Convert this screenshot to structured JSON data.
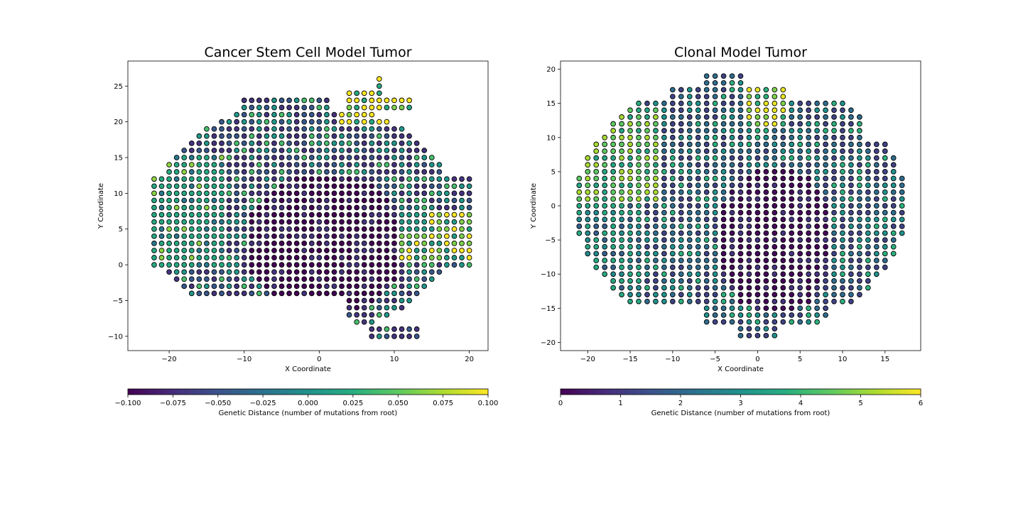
{
  "figure": {
    "background": "#ffffff"
  },
  "chart_data": [
    {
      "type": "scatter",
      "title": "Cancer Stem Cell Model Tumor",
      "xlabel": "X Coordinate",
      "ylabel": "Y Coordinate",
      "xlim": [
        -25.5,
        22.5
      ],
      "ylim": [
        -12,
        28.5
      ],
      "xticks": [
        -20,
        -10,
        0,
        10,
        20
      ],
      "xtick_labels": [
        "−20",
        "−10",
        "0",
        "10",
        "20"
      ],
      "yticks": [
        -10,
        -5,
        0,
        5,
        10,
        15,
        20,
        25
      ],
      "ytick_labels": [
        "−10",
        "−5",
        "0",
        "5",
        "10",
        "15",
        "20",
        "25"
      ],
      "grid": false,
      "point_style": "filled circle, black edge",
      "colormap": "viridis",
      "color_value_range": [
        -0.1,
        0.1
      ],
      "colorbar": {
        "label": "Genetic Distance (number of mutations from root)",
        "orientation": "horizontal",
        "ticks": [
          -0.1,
          -0.075,
          -0.05,
          -0.025,
          0.0,
          0.025,
          0.05,
          0.075,
          0.1
        ],
        "tick_labels": [
          "−0.100",
          "−0.075",
          "−0.050",
          "−0.025",
          "0.000",
          "0.025",
          "0.050",
          "0.075",
          "0.100"
        ]
      },
      "x_range_of_points": [
        -23,
        20
      ],
      "y_range_of_points": [
        -10,
        26
      ]
    },
    {
      "type": "scatter",
      "title": "Clonal Model Tumor",
      "xlabel": "X Coordinate",
      "ylabel": "Y Coordinate",
      "xlim": [
        -23.2,
        19.2
      ],
      "ylim": [
        -21.2,
        21.2
      ],
      "xticks": [
        -20,
        -15,
        -10,
        -5,
        0,
        5,
        10,
        15
      ],
      "xtick_labels": [
        "−20",
        "−15",
        "−10",
        "−5",
        "0",
        "5",
        "10",
        "15"
      ],
      "yticks": [
        -20,
        -15,
        -10,
        -5,
        0,
        5,
        10,
        15,
        20
      ],
      "ytick_labels": [
        "−20",
        "−15",
        "−10",
        "−5",
        "0",
        "5",
        "10",
        "15",
        "20"
      ],
      "grid": false,
      "point_style": "filled circle, black edge",
      "colormap": "viridis",
      "color_value_range": [
        0,
        6
      ],
      "colorbar": {
        "label": "Genetic Distance (number of mutations from root)",
        "orientation": "horizontal",
        "ticks": [
          0,
          1,
          2,
          3,
          4,
          5,
          6
        ],
        "tick_labels": [
          "0",
          "1",
          "2",
          "3",
          "4",
          "5",
          "6"
        ]
      },
      "x_range_of_points": [
        -21,
        17
      ],
      "y_range_of_points": [
        -19,
        19
      ]
    }
  ]
}
